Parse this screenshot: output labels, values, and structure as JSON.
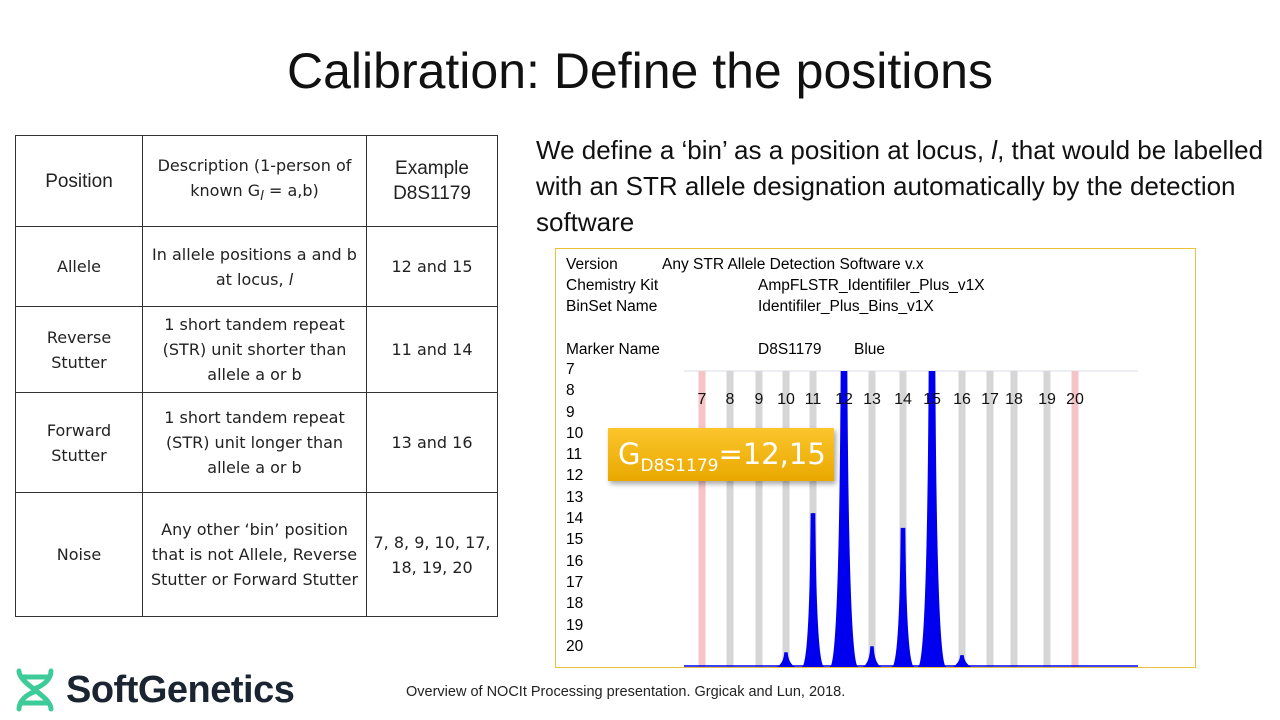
{
  "title": "Calibration: Define the positions",
  "table": {
    "header": [
      "Position",
      "Description (1-person of known G",
      "Example D8S1179"
    ],
    "header_desc_sub": "l",
    "header_desc_tail": " = a,b)",
    "rows": [
      {
        "position": "Allele",
        "description": "In allele positions a and b at locus, ",
        "description_italic": "l",
        "example": "12 and 15"
      },
      {
        "position": "Reverse Stutter",
        "description": "1 short tandem repeat (STR) unit shorter than allele a or b",
        "example": "11 and 14"
      },
      {
        "position": "Forward Stutter",
        "description": "1 short tandem repeat (STR) unit longer than allele a or b",
        "example": "13 and 16"
      },
      {
        "position": "Noise",
        "description": "Any other ‘bin’ position that is not Allele, Reverse Stutter or Forward Stutter",
        "example": "7, 8, 9, 10, 17, 18, 19, 20"
      }
    ]
  },
  "intro": {
    "before": "We define a ‘bin’ as a position at locus, ",
    "italic": "l",
    "after": ", that would be labelled with an STR allele designation automatically by the detection software"
  },
  "electropherogram": {
    "version_label": "Version",
    "version_value": "Any STR Allele Detection Software v.x",
    "kit_label": "Chemistry Kit",
    "kit_value": "AmpFLSTR_Identifiler_Plus_v1X",
    "binset_label": "BinSet Name",
    "binset_value": "Identifiler_Plus_Bins_v1X",
    "marker_label": "Marker Name",
    "marker_value": "D8S1179",
    "dye": "Blue",
    "y_list": [
      "7",
      "8",
      "9",
      "10",
      "11",
      "12",
      "13",
      "14",
      "15",
      "16",
      "17",
      "18",
      "19",
      "20"
    ],
    "bins": [
      "7",
      "8",
      "9",
      "10",
      "11",
      "12",
      "13",
      "14",
      "15",
      "16",
      "17",
      "18",
      "19",
      "20"
    ],
    "edge_bins": [
      "7",
      "20"
    ],
    "peak_relative_heights": {
      "10": 0.05,
      "11": 0.52,
      "12": 1.0,
      "13": 0.07,
      "14": 0.47,
      "15": 1.0,
      "16": 0.04
    },
    "colors": {
      "peak": "#0000ee",
      "bin": "#d6d6d6",
      "edge_bin": "#f6c4c4"
    },
    "callout": {
      "G": "G",
      "sub": "D8S1179",
      "value": "=12,15"
    }
  },
  "logo": {
    "text": "SoftGenetics",
    "color": "#3ecb9a"
  },
  "citation": "Overview of NOCIt Processing presentation. Grgicak and Lun, 2018."
}
